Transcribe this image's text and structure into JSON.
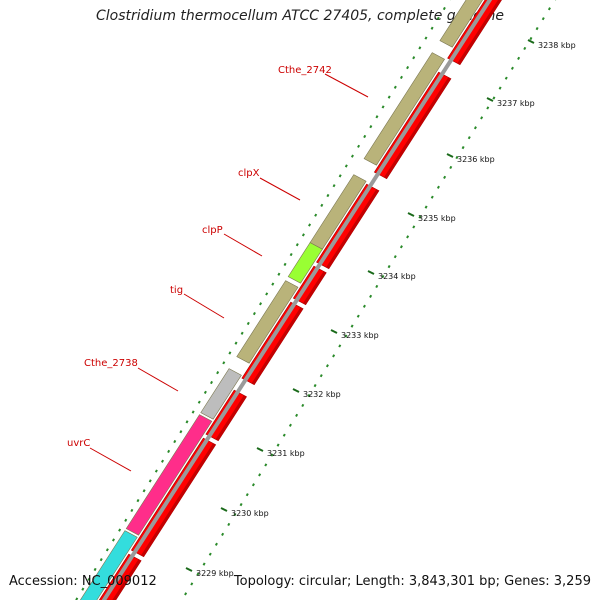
{
  "title": "Clostridium thermocellum ATCC 27405, complete genome",
  "footer": {
    "accession": "Accession: NC_009012",
    "summary": "Topology: circular; Length: 3,843,301 bp; Genes: 3,259"
  },
  "colors": {
    "background": "#ffffff",
    "reverse_gene": "#b9b37a",
    "forward_gene": "#ff0000",
    "backbone": "#9a9a9a",
    "ticks": "#2a8a2a",
    "label": "#cc0000",
    "clpP": "#99ff33",
    "Cthe_2738": "#bdbdbd",
    "uvrC": "#ff2d8a",
    "cyan_gene": "#33dddd"
  },
  "scale": {
    "unit": "kbp",
    "labels": [
      "3229 kbp",
      "3230 kbp",
      "3231 kbp",
      "3232 kbp",
      "3233 kbp",
      "3234 kbp",
      "3235 kbp",
      "3236 kbp",
      "3237 kbp",
      "3238 kbp"
    ]
  },
  "gene_labels": [
    {
      "name": "Cthe_2742"
    },
    {
      "name": "clpX"
    },
    {
      "name": "clpP"
    },
    {
      "name": "tig"
    },
    {
      "name": "Cthe_2738"
    },
    {
      "name": "uvrC"
    }
  ]
}
